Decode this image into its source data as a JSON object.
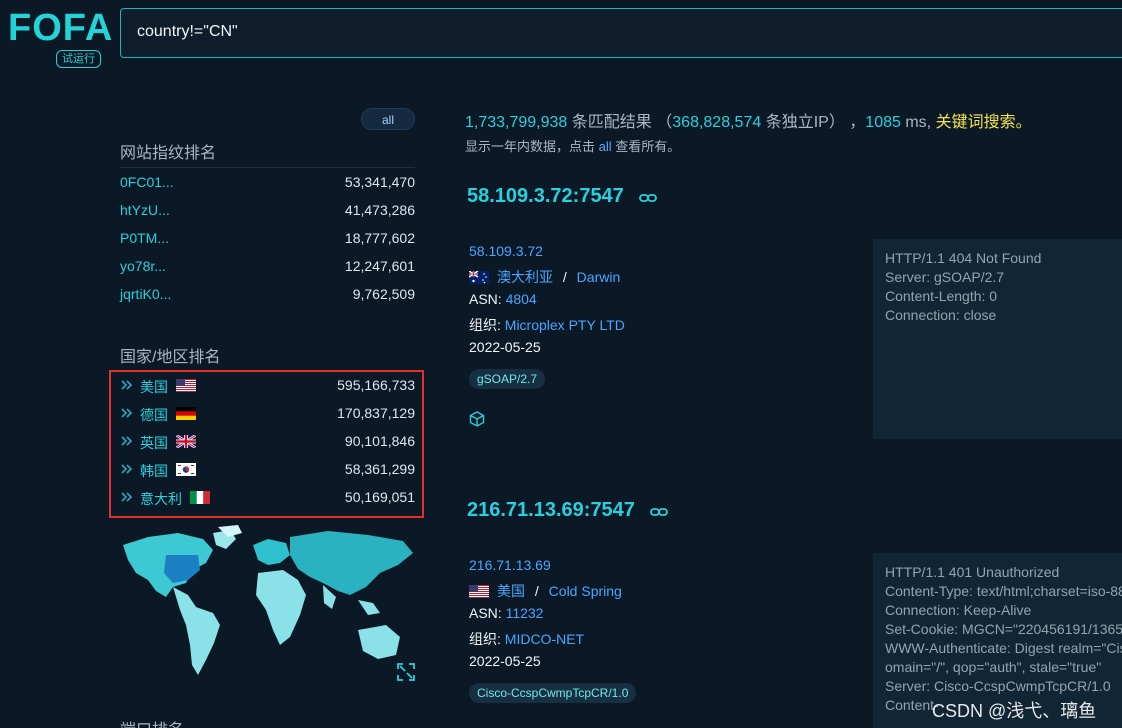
{
  "header": {
    "logo_text": "FOFA",
    "logo_badge": "试运行",
    "search_value": "country!=\"CN\""
  },
  "sidebar": {
    "all_button": "all",
    "fingerprint_title": "网站指纹排名",
    "fingerprints": [
      {
        "name": "0FC01...",
        "count": "53,341,470"
      },
      {
        "name": "htYzU...",
        "count": "41,473,286"
      },
      {
        "name": "P0TM...",
        "count": "18,777,602"
      },
      {
        "name": "yo78r...",
        "count": "12,247,601"
      },
      {
        "name": "jqrtiK0...",
        "count": "9,762,509"
      }
    ],
    "country_title": "国家/地区排名",
    "countries": [
      {
        "name": "美国",
        "flag": "us-flag-icon",
        "count": "595,166,733"
      },
      {
        "name": "德国",
        "flag": "de-flag-icon",
        "count": "170,837,129"
      },
      {
        "name": "英国",
        "flag": "gb-flag-icon",
        "count": "90,101,846"
      },
      {
        "name": "韩国",
        "flag": "kr-flag-icon",
        "count": "58,361,299"
      },
      {
        "name": "意大利",
        "flag": "it-flag-icon",
        "count": "50,169,051"
      }
    ],
    "port_title": "端口排名"
  },
  "summary": {
    "total": "1,733,799,938",
    "total_label": "条匹配结果",
    "paren_open": "（",
    "unique_ips": "368,828,574",
    "unique_label": "条独立IP）",
    "comma": "，",
    "time": "1085",
    "time_unit": "ms",
    "comma2": ",",
    "keyword": "关键词搜索",
    "period": "。",
    "note_prefix": "显示一年内数据，点击",
    "note_link": "all",
    "note_suffix": "查看所有。"
  },
  "results": [
    {
      "title": "58.109.3.72:7547",
      "ip": "58.109.3.72",
      "country": "澳大利亚",
      "separator": "/",
      "city": "Darwin",
      "asn_label": "ASN:",
      "asn": "4804",
      "org_label": "组织:",
      "org": "Microplex PTY LTD",
      "date": "2022-05-25",
      "tag": "gSOAP/2.7",
      "response": [
        "HTTP/1.1 404 Not Found",
        "Server: gSOAP/2.7",
        "Content-Length: 0",
        "Connection: close"
      ]
    },
    {
      "title": "216.71.13.69:7547",
      "ip": "216.71.13.69",
      "country": "美国",
      "separator": "/",
      "city": "Cold Spring",
      "asn_label": "ASN:",
      "asn": "11232",
      "org_label": "组织:",
      "org": "MIDCO-NET",
      "date": "2022-05-25",
      "tag": "Cisco-CcspCwmpTcpCR/1.0",
      "response": [
        "HTTP/1.1 401 Unauthorized",
        "Content-Type: text/html;charset=iso-88",
        "Connection: Keep-Alive",
        "Set-Cookie: MGCN=\"220456191/1365",
        "WWW-Authenticate: Digest realm=\"Cis",
        "omain=\"/\", qop=\"auth\", stale=\"true\"",
        "Server: Cisco-CcspCwmpTcpCR/1.0",
        "Content-"
      ]
    }
  ],
  "watermark": "CSDN @浅弋、璃鱼",
  "colors": {
    "background": "#0b1826",
    "accent": "#29d0dd",
    "link": "#4aa6ff",
    "highlight_box": "#e2312a",
    "keyword": "#f5e34a"
  }
}
